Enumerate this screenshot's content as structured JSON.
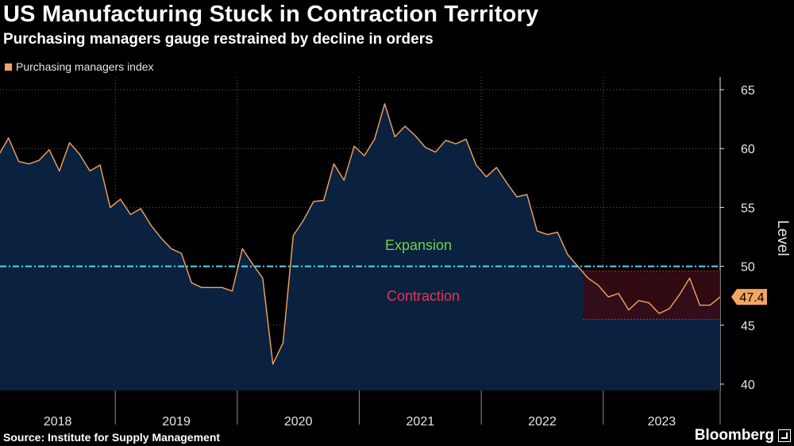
{
  "header": {
    "title": "US Manufacturing Stuck in Contraction Territory",
    "subtitle": "Purchasing managers gauge restrained by decline in orders"
  },
  "footer": {
    "source": "Source: Institute for Supply Management",
    "brand": "Bloomberg"
  },
  "colors": {
    "background": "#000000",
    "area_fill": "#0a2240",
    "line": "#f4a561",
    "threshold_line": "#58d6f0",
    "expansion_text": "#7ccb4a",
    "contraction_text": "#e8344e",
    "contraction_box": "#3a0a14",
    "contraction_box_border": "#d8203a",
    "grid": "#7a7a7a",
    "axis_text": "#e6e6e6",
    "last_value_badge": "#f4a561"
  },
  "chart_data": {
    "type": "area",
    "title": "US Manufacturing Stuck in Contraction Territory",
    "subtitle": "Purchasing managers gauge restrained by decline in orders",
    "xlabel": "",
    "ylabel": "Level",
    "ylim": [
      40,
      65
    ],
    "yticks": [
      "40",
      "45",
      "50",
      "55",
      "60",
      "65"
    ],
    "y_axis_side": "right",
    "grid": "vertical dotted lines at year boundaries, horizontal dotted lines at y ticks",
    "legend": {
      "entries": [
        "Purchasing managers index"
      ],
      "placement": "top-left"
    },
    "x_categories": [
      "2018",
      "2019",
      "2020",
      "2021",
      "2022",
      "2023"
    ],
    "series": [
      {
        "name": "Purchasing managers index",
        "start": "2018-01",
        "frequency": "monthly",
        "values": [
          59.4,
          60.9,
          58.9,
          58.7,
          59.0,
          59.9,
          58.1,
          60.5,
          59.5,
          58.1,
          58.6,
          55.0,
          55.7,
          54.4,
          54.9,
          53.5,
          52.4,
          51.5,
          51.1,
          48.6,
          48.2,
          48.2,
          48.2,
          47.9,
          51.5,
          50.2,
          49.0,
          41.7,
          43.5,
          52.6,
          53.9,
          55.5,
          55.6,
          58.7,
          57.3,
          60.2,
          59.4,
          60.8,
          63.8,
          61.0,
          61.9,
          61.1,
          60.1,
          59.7,
          60.7,
          60.4,
          60.8,
          58.6,
          57.6,
          58.4,
          57.1,
          55.9,
          56.1,
          53.0,
          52.7,
          52.9,
          51.0,
          50.0,
          49.0,
          48.4,
          47.4,
          47.7,
          46.3,
          47.1,
          46.9,
          46.0,
          46.4,
          47.6,
          49.0,
          46.7,
          46.7,
          47.4
        ]
      }
    ],
    "reference_line": {
      "value": 50,
      "style": "dash-dot"
    },
    "annotations": [
      {
        "text": "Expansion",
        "position": "above reference line"
      },
      {
        "text": "Contraction",
        "position": "below reference line"
      },
      {
        "text": "shaded contraction band",
        "from": "2022-10",
        "to": "2023-12",
        "ymin": 45.5,
        "ymax": 49.6
      }
    ],
    "last_value_label": "47.4"
  }
}
